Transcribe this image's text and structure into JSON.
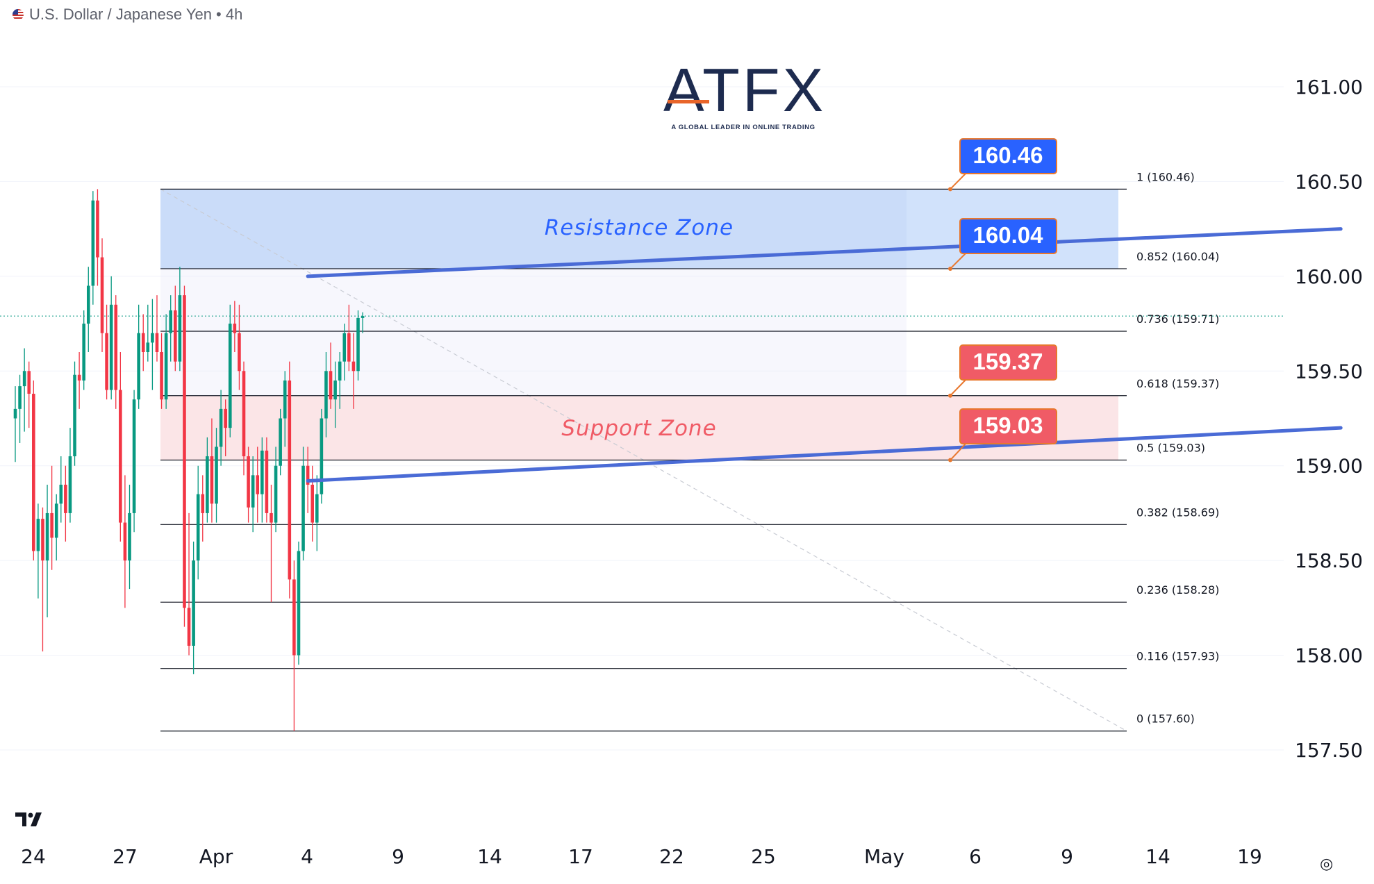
{
  "header": {
    "title": "U.S. Dollar / Japanese Yen • 4h"
  },
  "logo": {
    "text": "ATFX",
    "tagline": "A GLOBAL LEADER IN ONLINE TRADING"
  },
  "icons": {
    "tradingview": "tradingview-logo-icon",
    "settings": "settings-icon",
    "flag": "us-flag-icon"
  },
  "colors": {
    "bull": "#089981",
    "bear": "#f23645",
    "resistance_zone": "#cfe0fb",
    "support_zone": "#fbe4e6",
    "trendline": "#4a6bd6",
    "label_blue": "#2962ff",
    "label_red": "#f05b66",
    "label_border": "#e8772e"
  },
  "chart_data": {
    "type": "candlestick",
    "title": "U.S. Dollar / Japanese Yen • 4h",
    "y_range": [
      157.4,
      161.45
    ],
    "y_ticks": [
      "161.00",
      "160.50",
      "160.00",
      "159.50",
      "159.00",
      "158.50",
      "158.00",
      "157.50"
    ],
    "x_ticks": [
      "24",
      "27",
      "Apr",
      "4",
      "9",
      "14",
      "17",
      "22",
      "25",
      "May",
      "6",
      "9",
      "14",
      "19"
    ],
    "fib_levels": [
      {
        "label": "1 (160.46)",
        "value": 160.46
      },
      {
        "label": "0.852 (160.04)",
        "value": 160.04
      },
      {
        "label": "0.736 (159.71)",
        "value": 159.71
      },
      {
        "label": "0.618 (159.37)",
        "value": 159.37
      },
      {
        "label": "0.5 (159.03)",
        "value": 159.03
      },
      {
        "label": "0.382 (158.69)",
        "value": 158.69
      },
      {
        "label": "0.236 (158.28)",
        "value": 158.28
      },
      {
        "label": "0.116 (157.93)",
        "value": 157.93
      },
      {
        "label": "0 (157.60)",
        "value": 157.6
      }
    ],
    "zones": [
      {
        "name": "Resistance Zone",
        "from": 160.04,
        "to": 160.46
      },
      {
        "name": "Support Zone",
        "from": 159.03,
        "to": 159.37
      }
    ],
    "trendlines": [
      {
        "name": "Resistance Zone",
        "start": {
          "x": 6.4,
          "y": 160.0
        },
        "end": {
          "x": 29.4,
          "y": 160.25
        }
      },
      {
        "name": "Support Zone",
        "start": {
          "x": 6.4,
          "y": 158.92
        },
        "end": {
          "x": 29.4,
          "y": 159.2
        }
      }
    ],
    "price_labels": [
      {
        "text": "160.46",
        "value": 160.46,
        "color": "blue"
      },
      {
        "text": "160.04",
        "value": 160.04,
        "color": "blue"
      },
      {
        "text": "159.37",
        "value": 159.37,
        "color": "red"
      },
      {
        "text": "159.03",
        "value": 159.03,
        "color": "red"
      }
    ],
    "last_price": 159.79,
    "candles": [
      {
        "o": 159.25,
        "h": 159.42,
        "l": 159.02,
        "c": 159.3
      },
      {
        "o": 159.3,
        "h": 159.48,
        "l": 159.12,
        "c": 159.42
      },
      {
        "o": 159.42,
        "h": 159.62,
        "l": 159.18,
        "c": 159.5
      },
      {
        "o": 159.5,
        "h": 159.55,
        "l": 159.2,
        "c": 159.38
      },
      {
        "o": 159.38,
        "h": 159.45,
        "l": 158.5,
        "c": 158.55
      },
      {
        "o": 158.55,
        "h": 158.8,
        "l": 158.3,
        "c": 158.72
      },
      {
        "o": 158.72,
        "h": 158.78,
        "l": 158.02,
        "c": 158.5
      },
      {
        "o": 158.5,
        "h": 158.9,
        "l": 158.2,
        "c": 158.75
      },
      {
        "o": 158.75,
        "h": 159.0,
        "l": 158.45,
        "c": 158.62
      },
      {
        "o": 158.62,
        "h": 158.85,
        "l": 158.5,
        "c": 158.8
      },
      {
        "o": 158.8,
        "h": 159.05,
        "l": 158.7,
        "c": 158.9
      },
      {
        "o": 158.9,
        "h": 159.0,
        "l": 158.6,
        "c": 158.75
      },
      {
        "o": 158.75,
        "h": 159.2,
        "l": 158.7,
        "c": 159.05
      },
      {
        "o": 159.05,
        "h": 159.55,
        "l": 159.0,
        "c": 159.48
      },
      {
        "o": 159.48,
        "h": 159.6,
        "l": 159.3,
        "c": 159.45
      },
      {
        "o": 159.45,
        "h": 159.82,
        "l": 159.4,
        "c": 159.75
      },
      {
        "o": 159.75,
        "h": 160.05,
        "l": 159.6,
        "c": 159.95
      },
      {
        "o": 159.95,
        "h": 160.45,
        "l": 159.85,
        "c": 160.4
      },
      {
        "o": 160.4,
        "h": 160.46,
        "l": 159.95,
        "c": 160.1
      },
      {
        "o": 160.1,
        "h": 160.2,
        "l": 159.6,
        "c": 159.7
      },
      {
        "o": 159.7,
        "h": 159.85,
        "l": 159.35,
        "c": 159.4
      },
      {
        "o": 159.4,
        "h": 160.0,
        "l": 159.35,
        "c": 159.85
      },
      {
        "o": 159.85,
        "h": 159.9,
        "l": 159.3,
        "c": 159.4
      },
      {
        "o": 159.4,
        "h": 159.6,
        "l": 158.6,
        "c": 158.7
      },
      {
        "o": 158.7,
        "h": 158.95,
        "l": 158.25,
        "c": 158.5
      },
      {
        "o": 158.5,
        "h": 158.9,
        "l": 158.35,
        "c": 158.75
      },
      {
        "o": 158.75,
        "h": 159.4,
        "l": 158.65,
        "c": 159.35
      },
      {
        "o": 159.35,
        "h": 159.85,
        "l": 159.3,
        "c": 159.7
      },
      {
        "o": 159.7,
        "h": 159.8,
        "l": 159.5,
        "c": 159.6
      },
      {
        "o": 159.6,
        "h": 159.85,
        "l": 159.55,
        "c": 159.65
      },
      {
        "o": 159.65,
        "h": 159.88,
        "l": 159.4,
        "c": 159.7
      },
      {
        "o": 159.7,
        "h": 159.9,
        "l": 159.55,
        "c": 159.6
      },
      {
        "o": 159.6,
        "h": 159.7,
        "l": 159.3,
        "c": 159.35
      },
      {
        "o": 159.35,
        "h": 159.8,
        "l": 159.3,
        "c": 159.7
      },
      {
        "o": 159.7,
        "h": 159.9,
        "l": 159.55,
        "c": 159.82
      },
      {
        "o": 159.82,
        "h": 159.95,
        "l": 159.5,
        "c": 159.55
      },
      {
        "o": 159.55,
        "h": 160.05,
        "l": 159.5,
        "c": 159.9
      },
      {
        "o": 159.9,
        "h": 159.95,
        "l": 158.15,
        "c": 158.25
      },
      {
        "o": 158.25,
        "h": 158.75,
        "l": 158.0,
        "c": 158.05
      },
      {
        "o": 158.05,
        "h": 158.6,
        "l": 157.9,
        "c": 158.5
      },
      {
        "o": 158.5,
        "h": 159.0,
        "l": 158.4,
        "c": 158.85
      },
      {
        "o": 158.85,
        "h": 158.95,
        "l": 158.6,
        "c": 158.75
      },
      {
        "o": 158.75,
        "h": 159.15,
        "l": 158.7,
        "c": 159.05
      },
      {
        "o": 159.05,
        "h": 159.25,
        "l": 158.7,
        "c": 158.8
      },
      {
        "o": 158.8,
        "h": 159.2,
        "l": 158.7,
        "c": 159.1
      },
      {
        "o": 159.1,
        "h": 159.4,
        "l": 159.0,
        "c": 159.3
      },
      {
        "o": 159.3,
        "h": 159.35,
        "l": 159.05,
        "c": 159.2
      },
      {
        "o": 159.2,
        "h": 159.85,
        "l": 159.15,
        "c": 159.75
      },
      {
        "o": 159.75,
        "h": 159.87,
        "l": 159.6,
        "c": 159.7
      },
      {
        "o": 159.7,
        "h": 159.85,
        "l": 159.4,
        "c": 159.5
      },
      {
        "o": 159.5,
        "h": 159.55,
        "l": 158.95,
        "c": 159.05
      },
      {
        "o": 159.05,
        "h": 159.1,
        "l": 158.7,
        "c": 158.78
      },
      {
        "o": 158.78,
        "h": 159.05,
        "l": 158.65,
        "c": 158.95
      },
      {
        "o": 158.95,
        "h": 159.1,
        "l": 158.7,
        "c": 158.85
      },
      {
        "o": 158.85,
        "h": 159.15,
        "l": 158.7,
        "c": 159.08
      },
      {
        "o": 159.08,
        "h": 159.15,
        "l": 158.7,
        "c": 158.75
      },
      {
        "o": 158.75,
        "h": 158.9,
        "l": 158.28,
        "c": 158.7
      },
      {
        "o": 158.7,
        "h": 159.1,
        "l": 158.65,
        "c": 159.0
      },
      {
        "o": 159.0,
        "h": 159.3,
        "l": 158.95,
        "c": 159.25
      },
      {
        "o": 159.25,
        "h": 159.5,
        "l": 159.1,
        "c": 159.45
      },
      {
        "o": 159.45,
        "h": 159.55,
        "l": 158.3,
        "c": 158.4
      },
      {
        "o": 158.4,
        "h": 158.5,
        "l": 157.6,
        "c": 158.0
      },
      {
        "o": 158.0,
        "h": 158.6,
        "l": 157.95,
        "c": 158.55
      },
      {
        "o": 158.55,
        "h": 159.1,
        "l": 158.5,
        "c": 159.0
      },
      {
        "o": 159.0,
        "h": 159.1,
        "l": 158.75,
        "c": 158.9
      },
      {
        "o": 158.9,
        "h": 159.0,
        "l": 158.6,
        "c": 158.7
      },
      {
        "o": 158.7,
        "h": 158.95,
        "l": 158.55,
        "c": 158.85
      },
      {
        "o": 158.85,
        "h": 159.3,
        "l": 158.8,
        "c": 159.25
      },
      {
        "o": 159.25,
        "h": 159.6,
        "l": 159.15,
        "c": 159.5
      },
      {
        "o": 159.5,
        "h": 159.65,
        "l": 159.3,
        "c": 159.35
      },
      {
        "o": 159.35,
        "h": 159.55,
        "l": 159.2,
        "c": 159.45
      },
      {
        "o": 159.45,
        "h": 159.6,
        "l": 159.3,
        "c": 159.55
      },
      {
        "o": 159.55,
        "h": 159.75,
        "l": 159.45,
        "c": 159.7
      },
      {
        "o": 159.7,
        "h": 159.85,
        "l": 159.5,
        "c": 159.55
      },
      {
        "o": 159.55,
        "h": 159.7,
        "l": 159.3,
        "c": 159.5
      },
      {
        "o": 159.5,
        "h": 159.82,
        "l": 159.45,
        "c": 159.78
      },
      {
        "o": 159.78,
        "h": 159.81,
        "l": 159.7,
        "c": 159.79
      }
    ]
  }
}
